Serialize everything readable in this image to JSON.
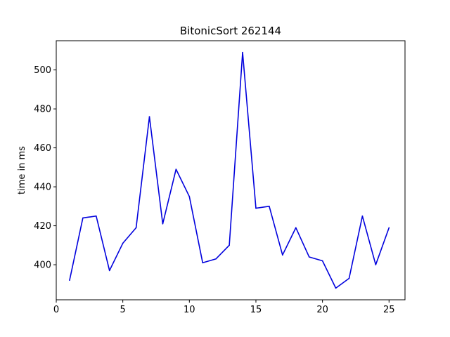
{
  "chart_data": {
    "type": "line",
    "title": "BitonicSort 262144",
    "xlabel": "",
    "ylabel": "time in ms",
    "xlim": [
      0,
      26.2
    ],
    "ylim": [
      382,
      515
    ],
    "xticks": [
      0,
      5,
      10,
      15,
      20,
      25
    ],
    "yticks": [
      400,
      420,
      440,
      460,
      480,
      500
    ],
    "grid": false,
    "legend": "none",
    "series": [
      {
        "color": "#0000dd",
        "x": [
          1,
          2,
          3,
          4,
          5,
          6,
          7,
          8,
          9,
          10,
          11,
          12,
          13,
          14,
          15,
          16,
          17,
          18,
          19,
          20,
          21,
          22,
          23,
          24,
          25
        ],
        "values": [
          392,
          424,
          425,
          397,
          411,
          419,
          476,
          421,
          449,
          435,
          401,
          403,
          410,
          509,
          429,
          430,
          405,
          419,
          404,
          402,
          388,
          393,
          425,
          400,
          419
        ]
      }
    ]
  }
}
